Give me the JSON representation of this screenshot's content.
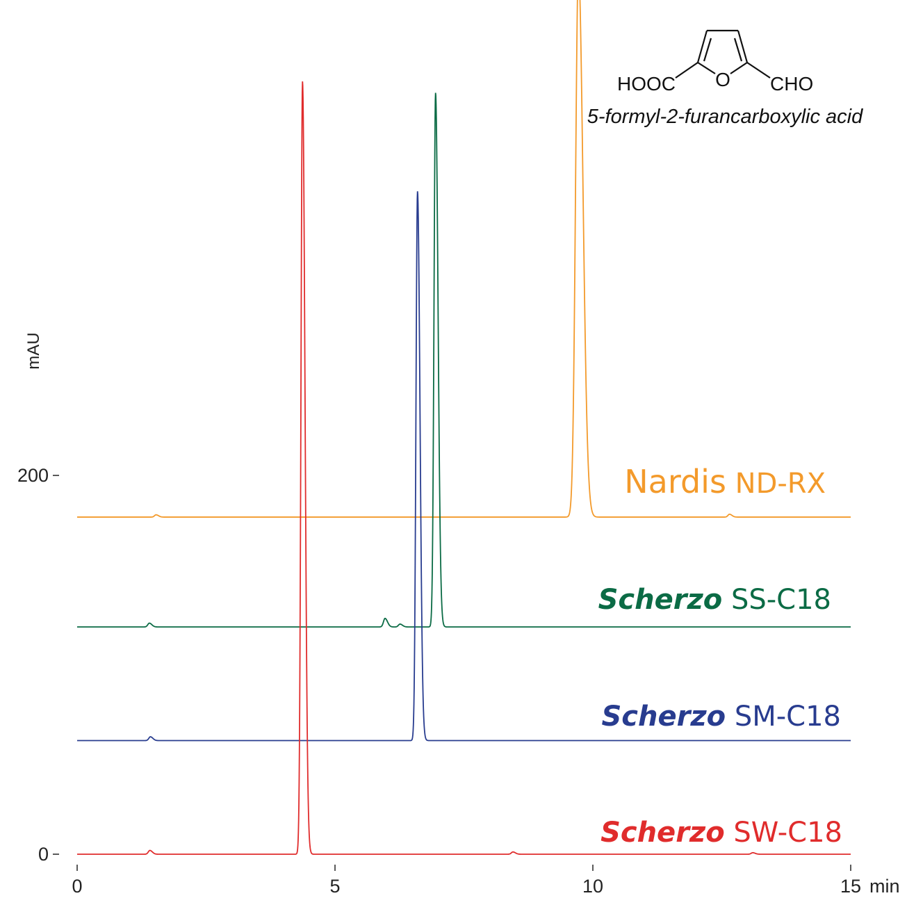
{
  "chart_data": {
    "type": "line",
    "title": "",
    "xlabel": "min",
    "ylabel": "mAU",
    "xlim": [
      0,
      15
    ],
    "ylim": [
      0,
      200
    ],
    "x_ticks": [
      "0",
      "5",
      "10",
      "15"
    ],
    "y_ticks": [
      "0",
      "200"
    ],
    "grid": false,
    "legend": "inline labels at right of each trace",
    "compound": {
      "formula_left": "HOOC",
      "formula_ring_atom": "O",
      "formula_right": "CHO",
      "name": "5-formyl-2-furancarboxylic acid"
    },
    "series": [
      {
        "name": "Nardis ND-RX",
        "label_brand": "Nardis",
        "label_model": "ND-RX",
        "color": "#f39a2b",
        "baseline": 178,
        "peaks": [
          {
            "rt": 1.53,
            "height": 1.2
          },
          {
            "rt": 9.72,
            "height": 290
          },
          {
            "rt": 12.65,
            "height": 1.5
          }
        ]
      },
      {
        "name": "Scherzo SS-C18",
        "label_brand": "Scherzo",
        "label_model": "SS-C18",
        "color": "#0b6b45",
        "baseline": 120,
        "peaks": [
          {
            "rt": 1.4,
            "height": 2.0
          },
          {
            "rt": 5.97,
            "height": 4.5
          },
          {
            "rt": 6.26,
            "height": 1.5
          },
          {
            "rt": 6.95,
            "height": 282
          }
        ]
      },
      {
        "name": "Scherzo SM-C18",
        "label_brand": "Scherzo",
        "label_model": "SM-C18",
        "color": "#283c8f",
        "baseline": 60,
        "peaks": [
          {
            "rt": 1.42,
            "height": 2.0
          },
          {
            "rt": 6.6,
            "height": 290
          }
        ]
      },
      {
        "name": "Scherzo SW-C18",
        "label_brand": "Scherzo",
        "label_model": "SW-C18",
        "color": "#e02c2c",
        "baseline": 0,
        "peaks": [
          {
            "rt": 1.41,
            "height": 2.0
          },
          {
            "rt": 4.37,
            "height": 408
          },
          {
            "rt": 8.45,
            "height": 1.2
          },
          {
            "rt": 13.1,
            "height": 0.8
          }
        ]
      }
    ]
  }
}
